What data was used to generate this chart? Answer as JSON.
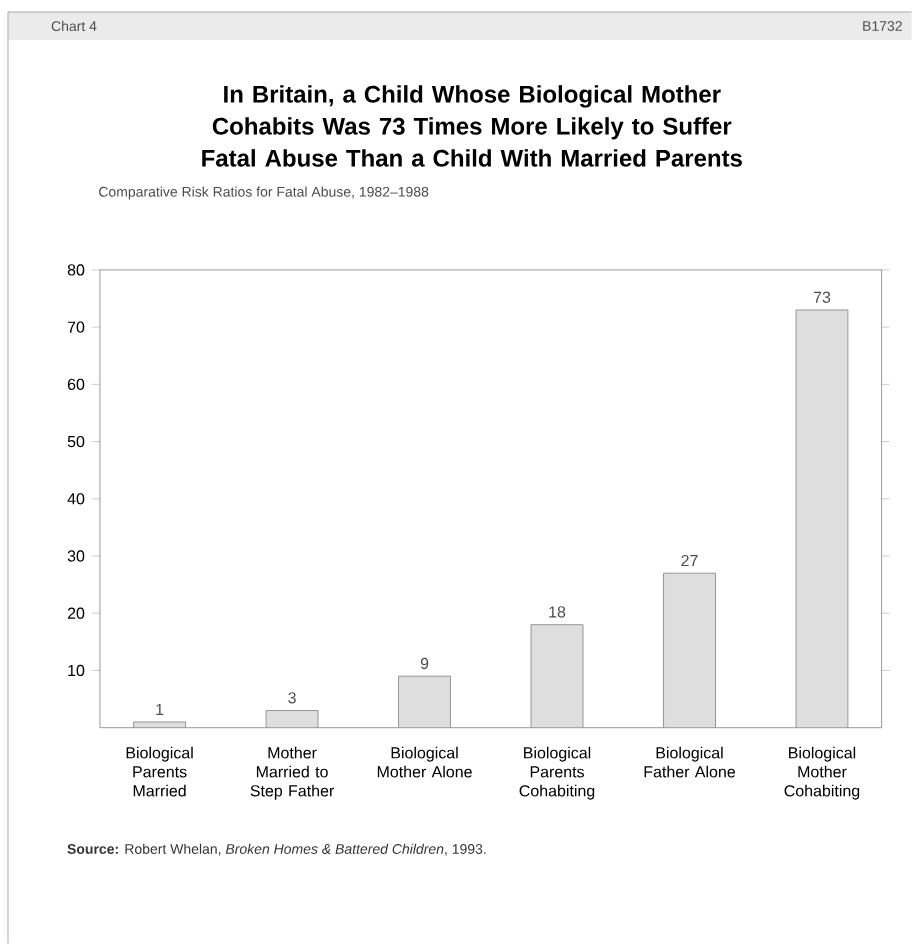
{
  "chart_data": {
    "type": "bar",
    "title": "In Britain, a Child Whose Biological Mother Cohabits Was 73 Times More Likely to Suffer Fatal Abuse Than a Child With Married Parents",
    "subtitle": "Comparative Risk Ratios for Fatal Abuse, 1982–1988",
    "categories": [
      "Biological Parents Married",
      "Mother Married to Step Father",
      "Biological Mother Alone",
      "Biological Parents Cohabiting",
      "Biological Father Alone",
      "Biological Mother Cohabiting"
    ],
    "values": [
      1,
      3,
      9,
      18,
      27,
      73
    ],
    "color": "#dedede",
    "data_labels": true,
    "ylim": [
      0,
      80
    ],
    "yticks": [
      10,
      20,
      30,
      40,
      50,
      60,
      70,
      80
    ],
    "grid": false,
    "annotations": [
      "Chart 4",
      "B1732",
      "**Source:** Robert Whelan, *Broken Homes & Battered Children*, 1993."
    ]
  }
}
